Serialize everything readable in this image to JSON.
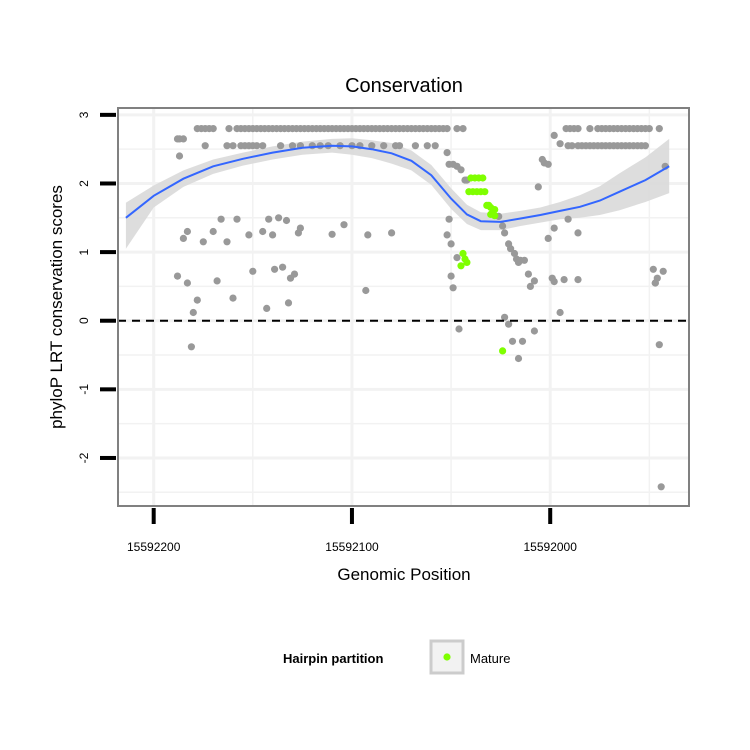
{
  "chart_data": {
    "type": "scatter",
    "title": "Conservation",
    "xlabel": "Genomic Position",
    "ylabel": "phyloP LRT conservation scores",
    "x_reversed": true,
    "xlim": [
      15592218,
      15591930
    ],
    "ylim": [
      -2.7,
      3.1
    ],
    "x_ticks": [
      15592200,
      15592100,
      15592000
    ],
    "x_tick_labels": [
      "15592200",
      "15592100",
      "15592000"
    ],
    "y_ticks": [
      3,
      2,
      1,
      0,
      -1,
      -2
    ],
    "y_tick_labels": [
      "3",
      "2",
      "1",
      "0",
      "-1",
      "-2"
    ],
    "grid": true,
    "reference_line": {
      "y": 0,
      "style": "dashed",
      "color": "#000000"
    },
    "legend": {
      "title": "Hairpin partition",
      "position": "bottom",
      "entries": [
        "Mature"
      ]
    },
    "colors": {
      "other": "#999999",
      "mature": "#7fff00",
      "smooth": "#3366ff",
      "ribbon": "#d9d9d9",
      "grid": "#f2f2f2",
      "panel_border": "#808080"
    },
    "series": [
      {
        "name": "",
        "color": "#999999",
        "points": [
          [
            15592188,
            2.65
          ],
          [
            15592187,
            2.65
          ],
          [
            15592185,
            2.65
          ],
          [
            15592187,
            2.4
          ],
          [
            15592188,
            0.65
          ],
          [
            15592185,
            1.2
          ],
          [
            15592183,
            0.55
          ],
          [
            15592183,
            1.3
          ],
          [
            15592181,
            -0.38
          ],
          [
            15592180,
            0.12
          ],
          [
            15592178,
            0.3
          ],
          [
            15592175,
            1.15
          ],
          [
            15592178,
            2.8
          ],
          [
            15592176,
            2.8
          ],
          [
            15592174,
            2.8
          ],
          [
            15592172,
            2.8
          ],
          [
            15592170,
            2.8
          ],
          [
            15592174,
            2.55
          ],
          [
            15592170,
            1.3
          ],
          [
            15592168,
            0.58
          ],
          [
            15592166,
            1.48
          ],
          [
            15592163,
            1.15
          ],
          [
            15592160,
            0.33
          ],
          [
            15592158,
            1.48
          ],
          [
            15592162,
            2.8
          ],
          [
            15592158,
            2.8
          ],
          [
            15592156,
            2.8
          ],
          [
            15592154,
            2.8
          ],
          [
            15592152,
            2.8
          ],
          [
            15592150,
            2.8
          ],
          [
            15592148,
            2.8
          ],
          [
            15592146,
            2.8
          ],
          [
            15592163,
            2.55
          ],
          [
            15592160,
            2.55
          ],
          [
            15592156,
            2.55
          ],
          [
            15592154,
            2.55
          ],
          [
            15592152,
            2.55
          ],
          [
            15592150,
            2.55
          ],
          [
            15592148,
            2.55
          ],
          [
            15592145,
            2.55
          ],
          [
            15592152,
            1.25
          ],
          [
            15592150,
            0.72
          ],
          [
            15592145,
            1.3
          ],
          [
            15592143,
            0.18
          ],
          [
            15592142,
            1.48
          ],
          [
            15592140,
            1.25
          ],
          [
            15592139,
            0.75
          ],
          [
            15592137,
            1.5
          ],
          [
            15592135,
            0.78
          ],
          [
            15592133,
            1.46
          ],
          [
            15592132,
            0.26
          ],
          [
            15592131,
            0.62
          ],
          [
            15592129,
            0.68
          ],
          [
            15592127,
            1.28
          ],
          [
            15592126,
            1.35
          ],
          [
            15592144,
            2.8
          ],
          [
            15592142,
            2.8
          ],
          [
            15592140,
            2.8
          ],
          [
            15592138,
            2.8
          ],
          [
            15592136,
            2.8
          ],
          [
            15592134,
            2.8
          ],
          [
            15592132,
            2.8
          ],
          [
            15592130,
            2.8
          ],
          [
            15592128,
            2.8
          ],
          [
            15592126,
            2.8
          ],
          [
            15592124,
            2.8
          ],
          [
            15592122,
            2.8
          ],
          [
            15592120,
            2.8
          ],
          [
            15592118,
            2.8
          ],
          [
            15592116,
            2.8
          ],
          [
            15592114,
            2.8
          ],
          [
            15592112,
            2.8
          ],
          [
            15592110,
            2.8
          ],
          [
            15592108,
            2.8
          ],
          [
            15592106,
            2.8
          ],
          [
            15592104,
            2.8
          ],
          [
            15592102,
            2.8
          ],
          [
            15592100,
            2.8
          ],
          [
            15592098,
            2.8
          ],
          [
            15592096,
            2.8
          ],
          [
            15592094,
            2.8
          ],
          [
            15592092,
            2.8
          ],
          [
            15592090,
            2.8
          ],
          [
            15592088,
            2.8
          ],
          [
            15592086,
            2.8
          ],
          [
            15592084,
            2.8
          ],
          [
            15592082,
            2.8
          ],
          [
            15592080,
            2.8
          ],
          [
            15592078,
            2.8
          ],
          [
            15592076,
            2.8
          ],
          [
            15592074,
            2.8
          ],
          [
            15592072,
            2.8
          ],
          [
            15592070,
            2.8
          ],
          [
            15592068,
            2.8
          ],
          [
            15592066,
            2.8
          ],
          [
            15592064,
            2.8
          ],
          [
            15592062,
            2.8
          ],
          [
            15592060,
            2.8
          ],
          [
            15592058,
            2.8
          ],
          [
            15592056,
            2.8
          ],
          [
            15592054,
            2.8
          ],
          [
            15592052,
            2.8
          ],
          [
            15592047,
            2.8
          ],
          [
            15592044,
            2.8
          ],
          [
            15592136,
            2.55
          ],
          [
            15592130,
            2.55
          ],
          [
            15592126,
            2.55
          ],
          [
            15592120,
            2.55
          ],
          [
            15592116,
            2.55
          ],
          [
            15592112,
            2.55
          ],
          [
            15592106,
            2.55
          ],
          [
            15592100,
            2.55
          ],
          [
            15592096,
            2.55
          ],
          [
            15592090,
            2.55
          ],
          [
            15592084,
            2.55
          ],
          [
            15592078,
            2.55
          ],
          [
            15592076,
            2.55
          ],
          [
            15592068,
            2.55
          ],
          [
            15592062,
            2.55
          ],
          [
            15592058,
            2.55
          ],
          [
            15592110,
            1.26
          ],
          [
            15592104,
            1.4
          ],
          [
            15592093,
            0.44
          ],
          [
            15592092,
            1.25
          ],
          [
            15592080,
            1.28
          ],
          [
            15592052,
            2.45
          ],
          [
            15592051,
            2.28
          ],
          [
            15592049,
            2.28
          ],
          [
            15592047,
            2.25
          ],
          [
            15592045,
            2.2
          ],
          [
            15592043,
            2.05
          ],
          [
            15592042,
            2.05
          ],
          [
            15592051,
            1.48
          ],
          [
            15592052,
            1.25
          ],
          [
            15592050,
            1.12
          ],
          [
            15592050,
            0.65
          ],
          [
            15592049,
            0.48
          ],
          [
            15592047,
            0.92
          ],
          [
            15592046,
            -0.12
          ],
          [
            15592026,
            1.52
          ],
          [
            15592024,
            1.38
          ],
          [
            15592023,
            1.28
          ],
          [
            15592021,
            1.12
          ],
          [
            15592020,
            1.05
          ],
          [
            15592018,
            0.98
          ],
          [
            15592017,
            0.9
          ],
          [
            15592016,
            0.85
          ],
          [
            15592015,
            0.88
          ],
          [
            15592013,
            0.88
          ],
          [
            15592011,
            0.68
          ],
          [
            15592010,
            0.5
          ],
          [
            15592008,
            0.58
          ],
          [
            15592023,
            0.05
          ],
          [
            15592021,
            -0.05
          ],
          [
            15592019,
            -0.3
          ],
          [
            15592016,
            -0.55
          ],
          [
            15592014,
            -0.3
          ],
          [
            15592008,
            -0.15
          ],
          [
            15592004,
            2.35
          ],
          [
            15592003,
            2.3
          ],
          [
            15592001,
            2.28
          ],
          [
            15592006,
            1.95
          ],
          [
            15592001,
            1.2
          ],
          [
            15591998,
            1.35
          ],
          [
            15591999,
            0.62
          ],
          [
            15591998,
            0.57
          ],
          [
            15591995,
            0.12
          ],
          [
            15591993,
            0.6
          ],
          [
            15591991,
            1.48
          ],
          [
            15591986,
            1.28
          ],
          [
            15591986,
            0.6
          ],
          [
            15591995,
            2.58
          ],
          [
            15591998,
            2.7
          ],
          [
            15591992,
            2.8
          ],
          [
            15591990,
            2.8
          ],
          [
            15591988,
            2.8
          ],
          [
            15591986,
            2.8
          ],
          [
            15591991,
            2.55
          ],
          [
            15591989,
            2.55
          ],
          [
            15591986,
            2.55
          ],
          [
            15591984,
            2.55
          ],
          [
            15591982,
            2.55
          ],
          [
            15591980,
            2.55
          ],
          [
            15591978,
            2.55
          ],
          [
            15591976,
            2.55
          ],
          [
            15591974,
            2.55
          ],
          [
            15591972,
            2.55
          ],
          [
            15591970,
            2.55
          ],
          [
            15591968,
            2.55
          ],
          [
            15591966,
            2.55
          ],
          [
            15591964,
            2.55
          ],
          [
            15591962,
            2.55
          ],
          [
            15591960,
            2.55
          ],
          [
            15591958,
            2.55
          ],
          [
            15591956,
            2.55
          ],
          [
            15591954,
            2.55
          ],
          [
            15591952,
            2.55
          ],
          [
            15591980,
            2.8
          ],
          [
            15591976,
            2.8
          ],
          [
            15591974,
            2.8
          ],
          [
            15591972,
            2.8
          ],
          [
            15591970,
            2.8
          ],
          [
            15591968,
            2.8
          ],
          [
            15591966,
            2.8
          ],
          [
            15591964,
            2.8
          ],
          [
            15591962,
            2.8
          ],
          [
            15591960,
            2.8
          ],
          [
            15591958,
            2.8
          ],
          [
            15591956,
            2.8
          ],
          [
            15591954,
            2.8
          ],
          [
            15591952,
            2.8
          ],
          [
            15591950,
            2.8
          ],
          [
            15591945,
            2.8
          ],
          [
            15591942,
            2.25
          ],
          [
            15591948,
            0.75
          ],
          [
            15591947,
            0.55
          ],
          [
            15591946,
            0.62
          ],
          [
            15591943,
            0.72
          ],
          [
            15591947,
            0.55
          ],
          [
            15591945,
            -0.35
          ],
          [
            15591944,
            -2.42
          ]
        ]
      },
      {
        "name": "Mature",
        "color": "#7fff00",
        "points": [
          [
            15592040,
            2.08
          ],
          [
            15592038,
            2.08
          ],
          [
            15592036,
            2.08
          ],
          [
            15592034,
            2.08
          ],
          [
            15592041,
            1.88
          ],
          [
            15592039,
            1.88
          ],
          [
            15592037,
            1.88
          ],
          [
            15592035,
            1.88
          ],
          [
            15592033,
            1.88
          ],
          [
            15592032,
            1.68
          ],
          [
            15592031,
            1.68
          ],
          [
            15592030,
            1.65
          ],
          [
            15592028,
            1.62
          ],
          [
            15592030,
            1.55
          ],
          [
            15592028,
            1.53
          ],
          [
            15592044,
            0.98
          ],
          [
            15592043,
            0.9
          ],
          [
            15592042,
            0.85
          ],
          [
            15592045,
            0.8
          ],
          [
            15592024,
            -0.44
          ]
        ]
      }
    ],
    "smooth": {
      "color": "#3366ff",
      "points": [
        [
          15592214,
          1.5
        ],
        [
          15592200,
          1.82
        ],
        [
          15592185,
          2.07
        ],
        [
          15592170,
          2.25
        ],
        [
          15592155,
          2.36
        ],
        [
          15592140,
          2.45
        ],
        [
          15592125,
          2.52
        ],
        [
          15592110,
          2.55
        ],
        [
          15592100,
          2.54
        ],
        [
          15592090,
          2.5
        ],
        [
          15592080,
          2.44
        ],
        [
          15592070,
          2.33
        ],
        [
          15592060,
          2.12
        ],
        [
          15592050,
          1.78
        ],
        [
          15592042,
          1.55
        ],
        [
          15592035,
          1.45
        ],
        [
          15592025,
          1.44
        ],
        [
          15592015,
          1.49
        ],
        [
          15592005,
          1.54
        ],
        [
          15591995,
          1.6
        ],
        [
          15591985,
          1.66
        ],
        [
          15591975,
          1.75
        ],
        [
          15591965,
          1.88
        ],
        [
          15591952,
          2.05
        ],
        [
          15591940,
          2.25
        ]
      ],
      "upper": [
        1.72,
        1.97,
        2.19,
        2.35,
        2.45,
        2.54,
        2.61,
        2.65,
        2.66,
        2.63,
        2.59,
        2.48,
        2.27,
        1.93,
        1.69,
        1.58,
        1.56,
        1.6,
        1.65,
        1.73,
        1.83,
        1.96,
        2.15,
        2.38,
        2.65
      ],
      "lower": [
        1.05,
        1.65,
        1.95,
        2.14,
        2.26,
        2.35,
        2.42,
        2.45,
        2.42,
        2.37,
        2.29,
        2.19,
        1.98,
        1.63,
        1.41,
        1.32,
        1.32,
        1.38,
        1.43,
        1.48,
        1.5,
        1.54,
        1.61,
        1.73,
        1.86
      ]
    }
  }
}
